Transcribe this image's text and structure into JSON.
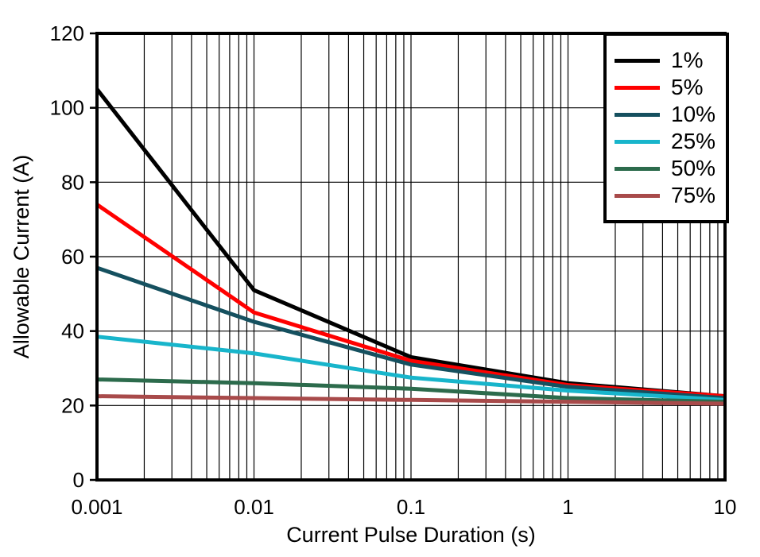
{
  "figure": {
    "background": "#ffffff",
    "border_color": "#000000",
    "grid_color": "#000000"
  },
  "chart_data": {
    "type": "line",
    "title": "",
    "xlabel": "Current Pulse Duration (s)",
    "ylabel": "Allowable Current (A)",
    "x_scale": "log",
    "xlim": [
      0.001,
      10
    ],
    "ylim": [
      0,
      120
    ],
    "x_ticks": [
      0.001,
      0.01,
      0.1,
      1,
      10
    ],
    "x_tick_labels": [
      "0.001",
      "0.01",
      "0.1",
      "1",
      "10"
    ],
    "y_ticks": [
      0,
      20,
      40,
      60,
      80,
      100,
      120
    ],
    "grid": true,
    "minor_x_grid": true,
    "legend_position": "top-right",
    "x": [
      0.001,
      0.01,
      0.1,
      1,
      10
    ],
    "series": [
      {
        "name": "1%",
        "color": "#000000",
        "values": [
          105,
          51,
          33,
          26,
          22.5
        ]
      },
      {
        "name": "5%",
        "color": "#ff0000",
        "values": [
          74,
          45,
          32,
          25.5,
          22.5
        ]
      },
      {
        "name": "10%",
        "color": "#15505f",
        "values": [
          57,
          42.5,
          31,
          25,
          22
        ]
      },
      {
        "name": "25%",
        "color": "#18b5cb",
        "values": [
          38.5,
          34,
          27.5,
          24,
          21.5
        ]
      },
      {
        "name": "50%",
        "color": "#2c6b4c",
        "values": [
          27,
          26,
          24.5,
          22,
          21
        ]
      },
      {
        "name": "75%",
        "color": "#a84a4a",
        "values": [
          22.5,
          22,
          21.5,
          21,
          20.5
        ]
      }
    ]
  }
}
